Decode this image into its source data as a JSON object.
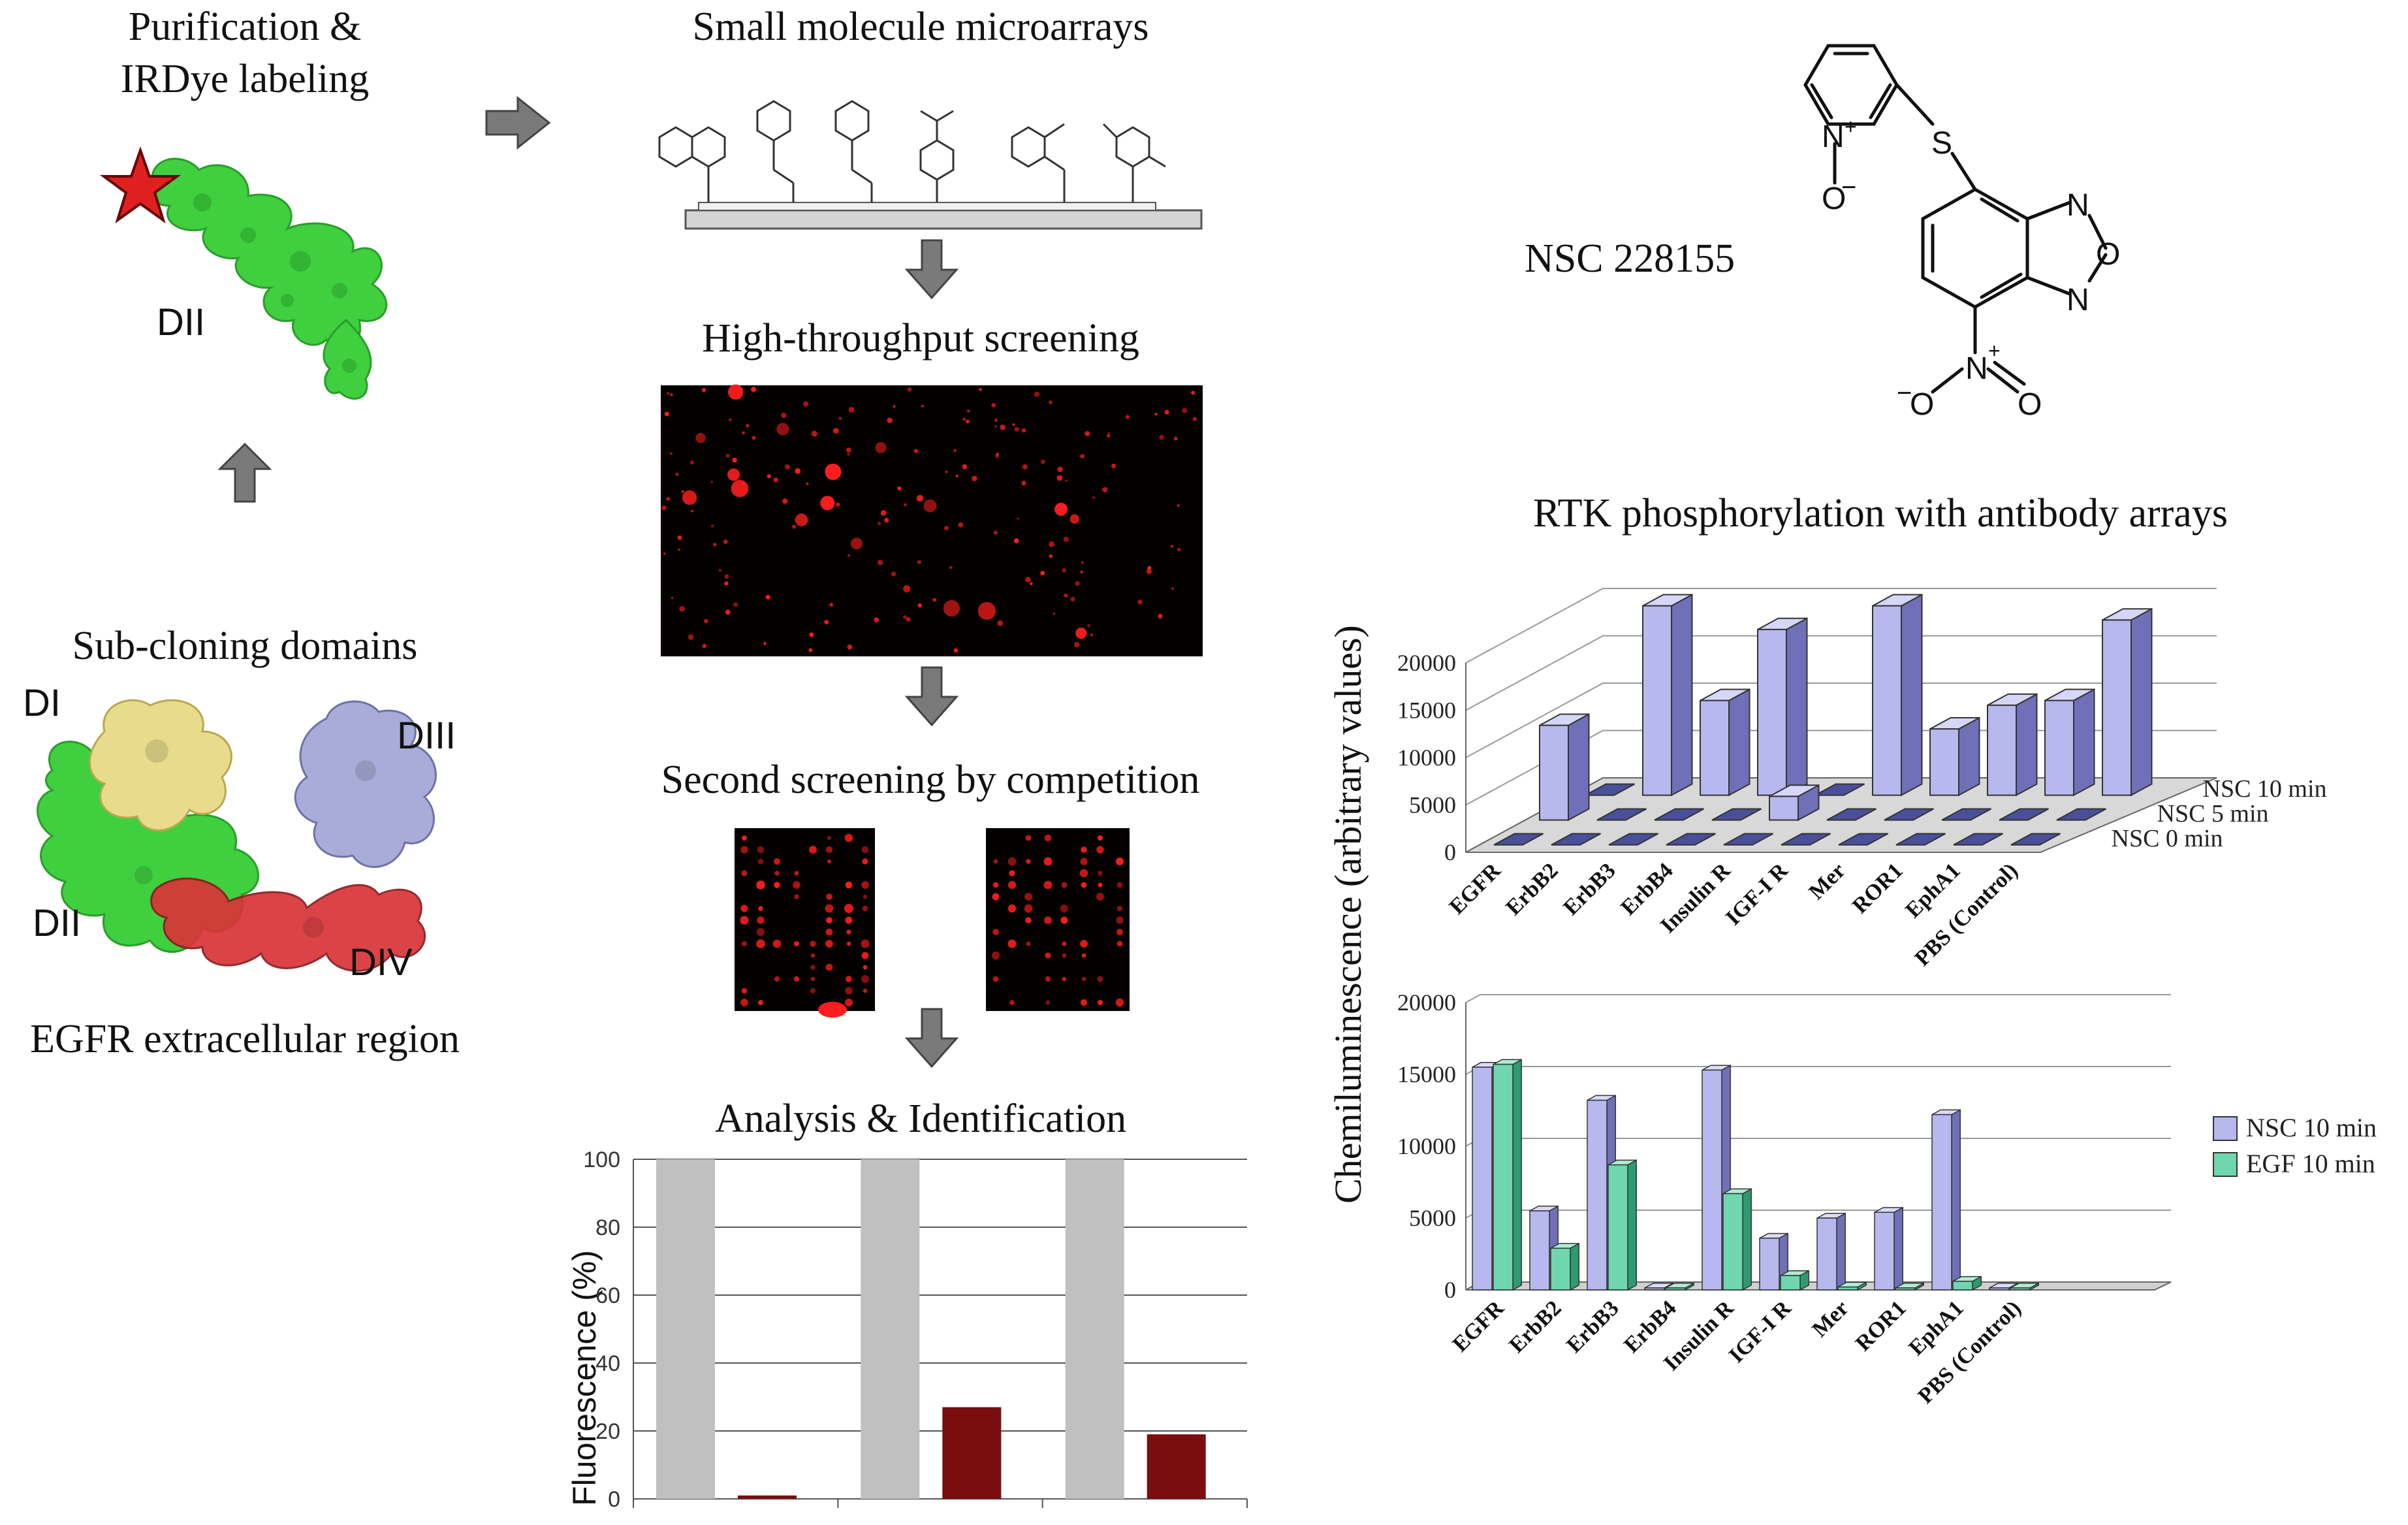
{
  "left": {
    "purification_title_line1": "Purification &",
    "purification_title_line2": "IRDye labeling",
    "dii_top_label": "DII",
    "subcloning_title": "Sub-cloning domains",
    "domain_labels": {
      "di": "DI",
      "dii": "DII",
      "diii": "DIII",
      "div": "DIV"
    },
    "egfr_title": "EGFR extracellular region"
  },
  "middle": {
    "microarray_title": "Small molecule microarrays",
    "hts_title": "High-throughput screening",
    "competition_title": "Second screening by competition",
    "analysis_title": "Analysis & Identification"
  },
  "compound": {
    "name": "NSC 228155",
    "atoms": {
      "n_plus": "N",
      "plus": "+",
      "o_minus": "O",
      "minus": "−",
      "s": "S",
      "n1": "N",
      "o_ring": "O",
      "n2": "N",
      "no2_n": "N",
      "no2_o1": "O",
      "no2_o2": "O"
    }
  },
  "colors": {
    "green_domain": "#3fcf3f",
    "yellow_domain": "#e8dc8c",
    "lavender_domain": "#a9acd8",
    "red_domain": "#d83438",
    "nsc_bar": "#b7b8ee",
    "egf_bar": "#6fd6b0",
    "fluor_gray": "#c0c0c0",
    "fluor_red": "#7a0d0d",
    "spot_red": "#ff1e1e"
  },
  "chart_data": [
    {
      "type": "bar",
      "title": "Analysis & Identification",
      "ylabel": "Fluorescence (%)",
      "xlabel": "",
      "categories": [
        "",
        "",
        ""
      ],
      "series": [
        {
          "values": [
            100,
            100,
            100
          ]
        },
        {
          "values": [
            1,
            27,
            19
          ]
        }
      ],
      "ylim": [
        0,
        100
      ],
      "yticks": [
        0,
        20,
        40,
        60,
        80,
        100
      ],
      "grid": true
    },
    {
      "type": "bar",
      "title": "RTK phosphorylation with antibody arrays",
      "ylabel": "Chemiluminescence (arbitrary values)",
      "categories": [
        "EGFR",
        "ErbB2",
        "ErbB3",
        "ErbB4",
        "Insulin R",
        "IGF-I R",
        "Mer",
        "ROR1",
        "EphA1",
        "PBS (Control)"
      ],
      "series": [
        {
          "name": "NSC 10 min",
          "values": [
            0,
            20000,
            10000,
            17500,
            0,
            20000,
            7000,
            9500,
            10000,
            18500
          ]
        },
        {
          "name": "NSC 5 min",
          "values": [
            10000,
            0,
            0,
            0,
            2500,
            0,
            0,
            0,
            0,
            0
          ]
        },
        {
          "name": "NSC 0 min",
          "values": [
            0,
            0,
            0,
            0,
            0,
            0,
            0,
            0,
            0,
            0
          ]
        }
      ],
      "ylim": [
        0,
        20000
      ],
      "yticks": [
        0,
        5000,
        10000,
        15000,
        20000
      ],
      "legend": "right",
      "grid": true
    },
    {
      "type": "bar",
      "categories": [
        "EGFR",
        "ErbB2",
        "ErbB3",
        "ErbB4",
        "Insulin R",
        "IGF-I R",
        "Mer",
        "ROR1",
        "EphA1",
        "PBS (Control)"
      ],
      "series": [
        {
          "name": "NSC 10 min",
          "values": [
            15500,
            5500,
            13200,
            0,
            15300,
            3600,
            5000,
            5400,
            12200,
            0
          ]
        },
        {
          "name": "EGF 10 min",
          "values": [
            15700,
            2900,
            8700,
            0,
            6700,
            1000,
            200,
            0,
            600,
            0
          ]
        }
      ],
      "ylim": [
        0,
        20000
      ],
      "yticks": [
        0,
        5000,
        10000,
        15000,
        20000
      ],
      "legend": "right",
      "grid": true
    }
  ]
}
